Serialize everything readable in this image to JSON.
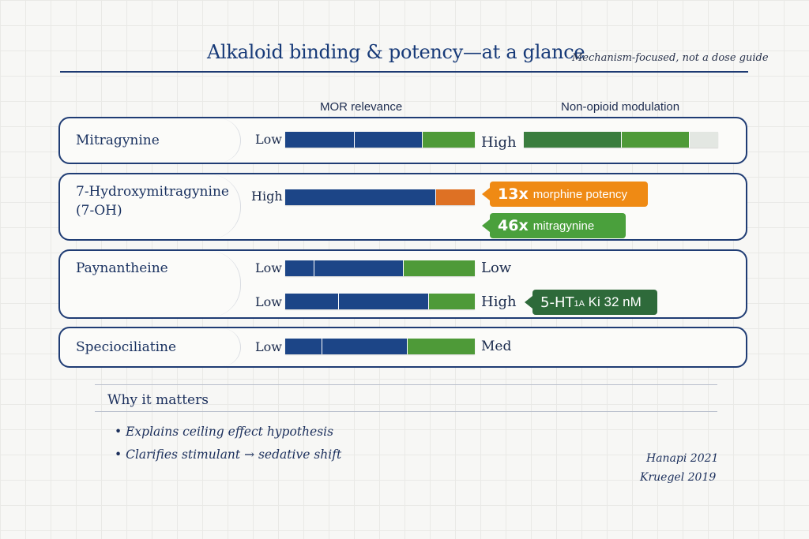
{
  "header": {
    "title": "Alkaloid binding & potency—at a glance",
    "subtitle": "Mechanism-focused, not a dose guide"
  },
  "columns": {
    "mor": "MOR relevance",
    "non_opioid": "Non-opioid modulation"
  },
  "colors": {
    "navy": "#1c4587",
    "green": "#4e9a38",
    "dark_green": "#3a7d3e",
    "orange": "#de7124",
    "callout_orange": "#ef8a14",
    "callout_green": "#4aa03c",
    "callout_dark_green": "#2e6a3a",
    "light_gray": "#e3e7e2"
  },
  "rows": [
    {
      "name": "Mitragynine",
      "mor": {
        "low_label": "Low",
        "high_label": "High"
      },
      "non_opioid": {}
    },
    {
      "name_line1": "7-Hydroxymitragynine",
      "name_line2": "(7-OH)",
      "mor": {
        "level_label": "High"
      },
      "callouts": [
        {
          "big": "13x",
          "small": "morphine potency"
        },
        {
          "big": "46x",
          "small": "mitragynine"
        }
      ]
    },
    {
      "name": "Paynantheine",
      "mor": {
        "low_label": "Low",
        "high_label": "Low"
      },
      "second": {
        "low_label": "Low",
        "high_label": "High"
      },
      "callout": {
        "prefix": "5-HT",
        "subscript": "1A",
        "suffix": " Ki 32 nM"
      }
    },
    {
      "name": "Speciociliatine",
      "mor": {
        "low_label": "Low",
        "high_label": "Med"
      }
    }
  ],
  "why": {
    "title": "Why it matters",
    "bullets": [
      "Explains ceiling effect hypothesis",
      "Clarifies stimulant → sedative shift"
    ],
    "refs": [
      "Hanapi 2021",
      "Kruegel 2019"
    ]
  }
}
